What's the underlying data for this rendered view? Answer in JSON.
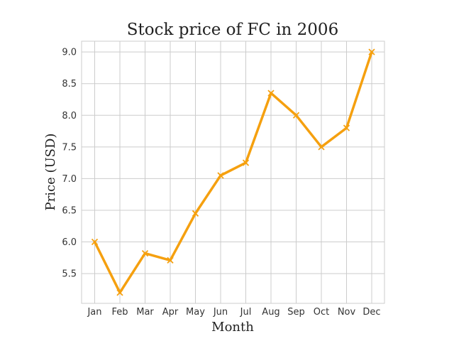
{
  "chart_data": {
    "type": "line",
    "title": "Stock price of FC in 2006",
    "xlabel": "Month",
    "ylabel": "Price (USD)",
    "categories": [
      "Jan",
      "Feb",
      "Mar",
      "Apr",
      "May",
      "Jun",
      "Jul",
      "Aug",
      "Sep",
      "Oct",
      "Nov",
      "Dec"
    ],
    "series": [
      {
        "values": [
          6.0,
          5.2,
          5.82,
          5.71,
          6.45,
          7.05,
          7.25,
          8.35,
          8.0,
          7.5,
          7.8,
          9.0
        ]
      }
    ],
    "ylim": [
      5.03,
      9.17
    ],
    "yticks": [
      "5.5",
      "6.0",
      "6.5",
      "7.0",
      "7.5",
      "8.0",
      "8.5",
      "9.0"
    ],
    "marker": "x",
    "grid": true,
    "colors": {
      "line": "#f5a00f",
      "grid": "#cccccc"
    }
  }
}
